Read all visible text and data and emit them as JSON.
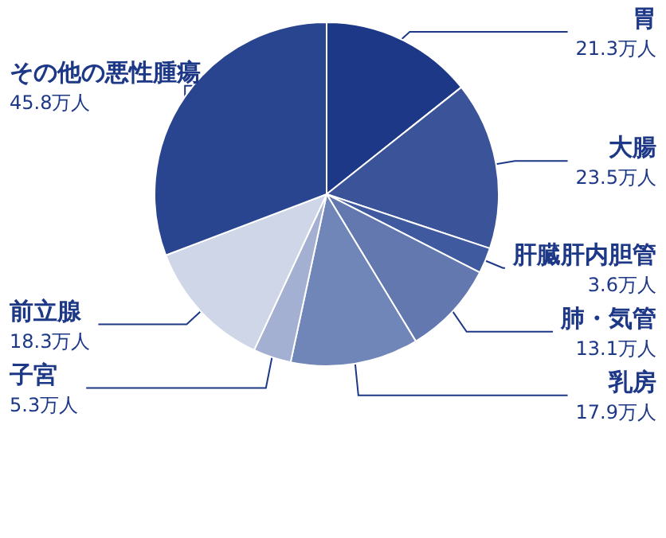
{
  "chart_data": {
    "type": "pie",
    "categories": [
      "胃",
      "大腸",
      "肝臓肝内胆管",
      "肺・気管",
      "乳房",
      "子宮",
      "前立腺",
      "その他の悪性腫瘍"
    ],
    "values": [
      21.3,
      23.5,
      3.6,
      13.1,
      17.9,
      5.3,
      18.3,
      45.8
    ],
    "value_labels": [
      "21.3万人",
      "23.5万人",
      "3.6万人",
      "13.1万人",
      "17.9万人",
      "5.3万人",
      "18.3万人",
      "45.8万人"
    ],
    "colors": [
      "#1d3887",
      "#3a5399",
      "#3f5a9f",
      "#6378ae",
      "#7085b8",
      "#a3b0d1",
      "#cfd6e7",
      "#2a4590"
    ]
  }
}
